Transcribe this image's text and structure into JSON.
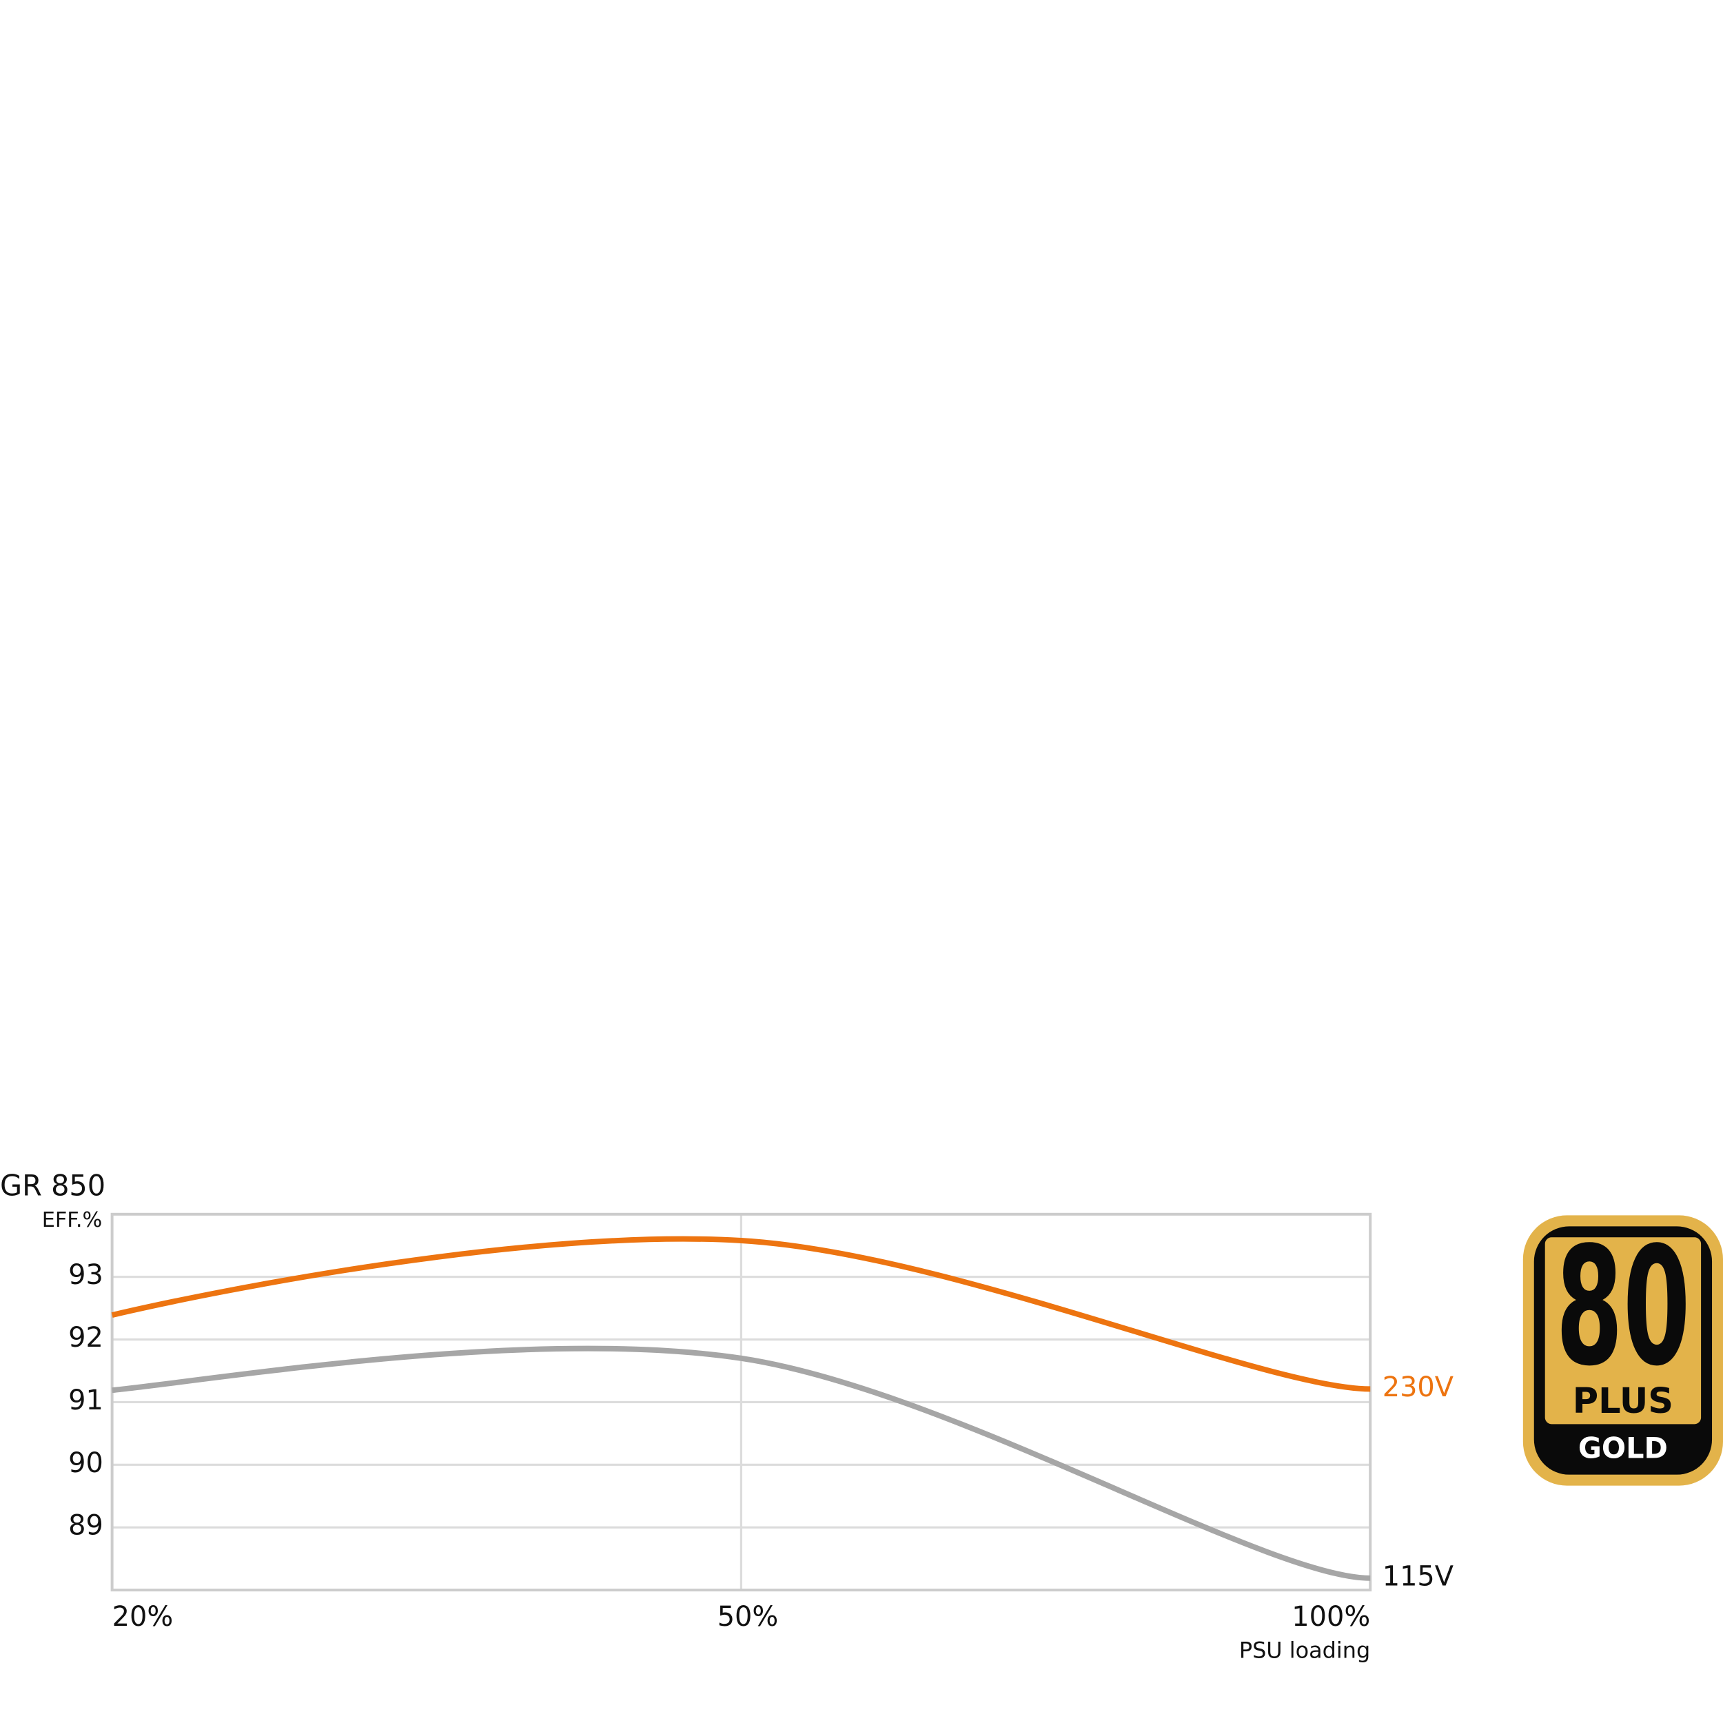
{
  "chart_data": {
    "type": "line",
    "title": "GR 850",
    "y_label": "EFF.%",
    "x_label": "PSU loading",
    "categories": [
      "20%",
      "50%",
      "100%"
    ],
    "series": [
      {
        "name": "230V",
        "color": "#ed7410",
        "values": [
          92.39,
          93.58,
          91.21
        ]
      },
      {
        "name": "115V",
        "color": "#a6a6a6",
        "values": [
          91.19,
          91.7,
          88.19
        ]
      }
    ],
    "ylim": [
      88,
      94
    ],
    "yticks": [
      89,
      90,
      91,
      92,
      93
    ],
    "grid": true
  },
  "badge": {
    "number": "80",
    "plus": "PLUS",
    "tier": "GOLD"
  }
}
